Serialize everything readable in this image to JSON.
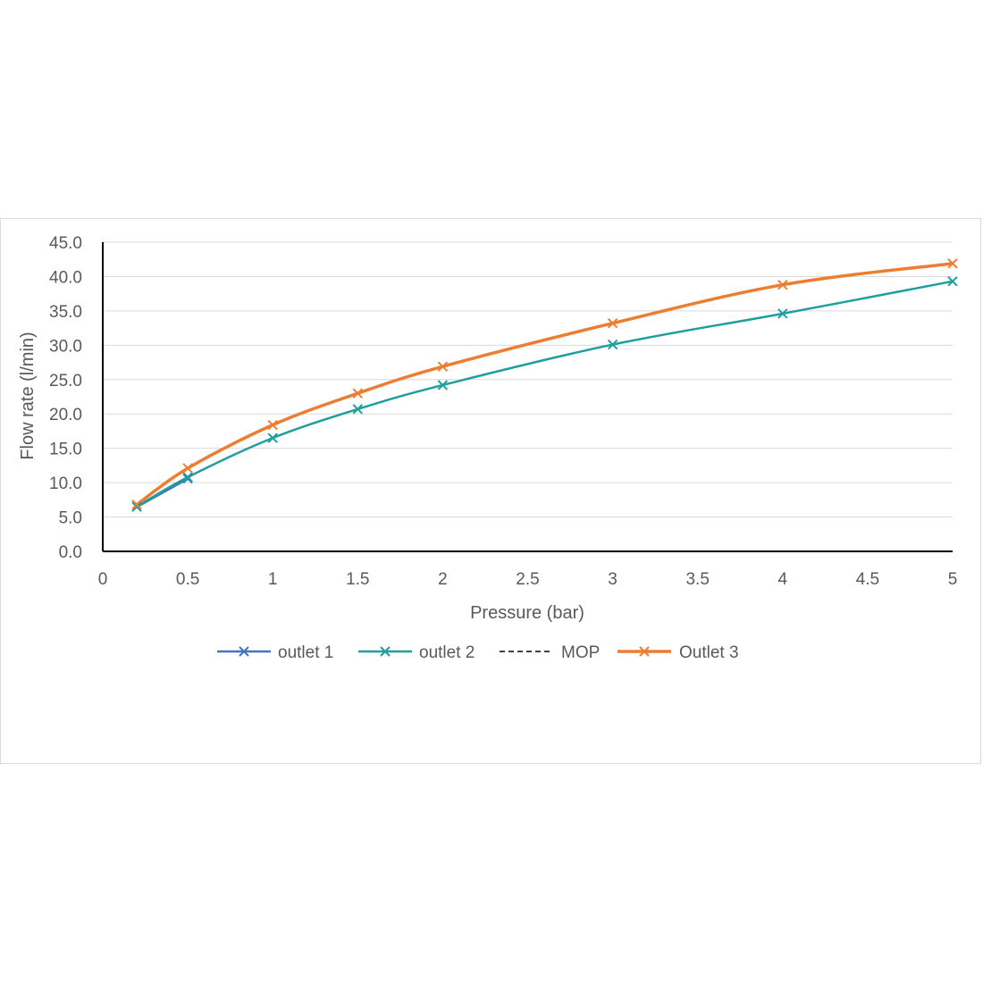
{
  "chart_data": {
    "type": "line",
    "title": "",
    "xlabel": "Pressure (bar)",
    "ylabel": "Flow rate (l/min)",
    "xlim": [
      0,
      5
    ],
    "ylim": [
      0,
      45
    ],
    "x_ticks": [
      "0",
      "0.5",
      "1",
      "1.5",
      "2",
      "2.5",
      "3",
      "3.5",
      "4",
      "4.5",
      "5"
    ],
    "y_ticks": [
      "0.0",
      "5.0",
      "10.0",
      "15.0",
      "20.0",
      "25.0",
      "30.0",
      "35.0",
      "40.0",
      "45.0"
    ],
    "grid": true,
    "legend_position": "bottom",
    "series": [
      {
        "name": "outlet 1",
        "color": "#4472c4",
        "style": "solid",
        "marker": "x",
        "x": [
          0.2,
          0.5
        ],
        "y": [
          6.5,
          10.6
        ]
      },
      {
        "name": "outlet 2",
        "color": "#1f9e9e",
        "style": "solid",
        "marker": "x",
        "x": [
          0.2,
          0.5,
          1,
          1.5,
          2,
          3,
          4,
          5
        ],
        "y": [
          6.5,
          10.8,
          16.5,
          20.7,
          24.2,
          30.1,
          34.6,
          39.3
        ]
      },
      {
        "name": "MOP",
        "color": "#000000",
        "style": "dashed",
        "marker": "none",
        "x": [],
        "y": []
      },
      {
        "name": "Outlet 3",
        "color": "#ed7d31",
        "style": "solid",
        "marker": "x",
        "x": [
          0.2,
          0.5,
          1,
          1.5,
          2,
          3,
          4,
          5
        ],
        "y": [
          6.8,
          12.1,
          18.4,
          23.0,
          26.9,
          33.2,
          38.8,
          41.9
        ]
      }
    ]
  }
}
